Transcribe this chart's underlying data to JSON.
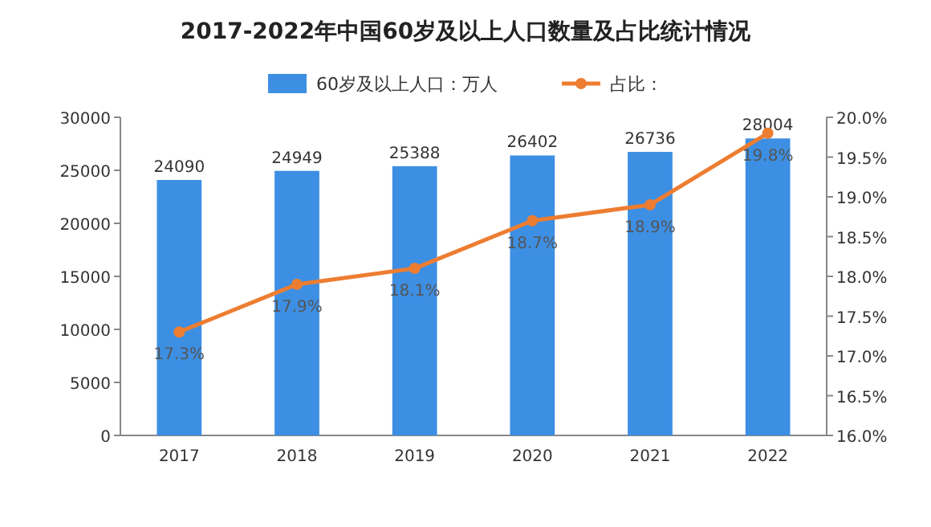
{
  "chart_data": {
    "type": "bar",
    "title": "2017-2022年中国60岁及以上人口数量及占比统计情况",
    "categories": [
      "2017",
      "2018",
      "2019",
      "2020",
      "2021",
      "2022"
    ],
    "series": [
      {
        "name": "60岁及以上人口：万人",
        "color": "#3d8fe3",
        "values": [
          24090,
          24949,
          25388,
          26402,
          26736,
          28004
        ],
        "value_labels": [
          "24090",
          "24949",
          "25388",
          "26402",
          "26736",
          "28004"
        ]
      },
      {
        "name": "占比：",
        "type": "line",
        "axis": "y2",
        "color": "#ed7d31",
        "values": [
          17.3,
          17.9,
          18.1,
          18.7,
          18.9,
          19.8
        ],
        "value_labels": [
          "17.3%",
          "17.9%",
          "18.1%",
          "18.7%",
          "18.9%",
          "19.8%"
        ]
      }
    ],
    "ylim": [
      0,
      30000
    ],
    "yticks": [
      0,
      5000,
      10000,
      15000,
      20000,
      25000,
      30000
    ],
    "y2lim": [
      16,
      20
    ],
    "y2ticks": [
      {
        "value": 16,
        "label": "16.0%"
      },
      {
        "value": 16.5,
        "label": "16.5%"
      },
      {
        "value": 17,
        "label": "17.0%"
      },
      {
        "value": 17.5,
        "label": "17.5%"
      },
      {
        "value": 18,
        "label": "18.0%"
      },
      {
        "value": 18.5,
        "label": "18.5%"
      },
      {
        "value": 19,
        "label": "19.0%"
      },
      {
        "value": 19.5,
        "label": "19.5%"
      },
      {
        "value": 20,
        "label": "20.0%"
      }
    ],
    "legend": "top",
    "marker": "circle",
    "grid": false
  }
}
